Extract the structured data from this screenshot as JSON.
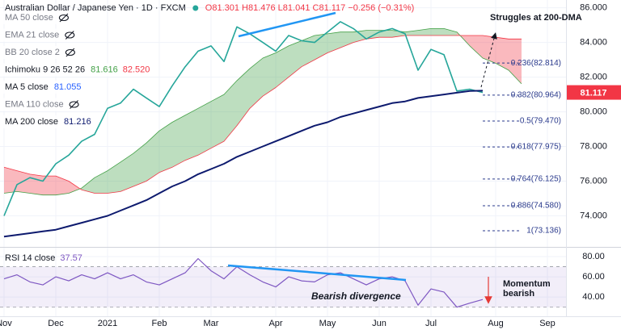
{
  "chart_data": [
    {
      "type": "line",
      "title": "Australian Dollar / Japanese Yen · 1D · FXCM",
      "ohlc_text": "O81.301 H81.476 L81.041 C81.117 −0.256 (−0.31%)",
      "annotation": "Struggles at 200-DMA",
      "categories": [
        "Nov",
        null,
        null,
        null,
        "Dec",
        null,
        null,
        null,
        "2021",
        null,
        null,
        null,
        "Feb",
        null,
        null,
        null,
        "Mar",
        null,
        null,
        null,
        null,
        "Apr",
        null,
        null,
        null,
        "May",
        null,
        null,
        null,
        "Jun",
        null,
        null,
        null,
        "Jul",
        null,
        null,
        null,
        null,
        "Aug",
        null,
        null,
        null,
        "Sep"
      ],
      "values": [
        74.0,
        75.8,
        76.2,
        76.0,
        77.0,
        77.5,
        78.3,
        78.7,
        80.2,
        80.5,
        81.3,
        80.8,
        80.3,
        81.5,
        82.6,
        83.5,
        83.8,
        82.9,
        84.9,
        84.5,
        84.0,
        83.5,
        84.4,
        84.1,
        84.0,
        84.6,
        85.2,
        84.8,
        84.2,
        84.6,
        84.8,
        84.5,
        82.4,
        83.6,
        83.3,
        81.2,
        81.3,
        81.117,
        null,
        null,
        null,
        null,
        null
      ],
      "color": "#26a69a",
      "last_price": 81.117,
      "series": [
        {
          "name": "MA 50 close",
          "hidden": true
        },
        {
          "name": "EMA 21 close",
          "hidden": true
        },
        {
          "name": "BB 20 close 2",
          "hidden": true
        },
        {
          "name": "Ichimoku 9 26 52 26",
          "last": [
            81.616,
            {
              "value": 82.52,
              "label": "82.520"
            }
          ],
          "colors": [
            "#43a047",
            "#f23645"
          ],
          "span_a": [
            75.3,
            75.4,
            75.3,
            75.2,
            75.2,
            75.3,
            75.6,
            76.2,
            76.6,
            77.1,
            77.6,
            78.2,
            78.9,
            79.4,
            79.8,
            80.2,
            80.6,
            81.0,
            81.8,
            82.5,
            83.1,
            83.4,
            83.8,
            84.1,
            84.4,
            84.5,
            84.6,
            84.6,
            84.7,
            84.7,
            84.7,
            84.6,
            84.7,
            84.8,
            84.8,
            84.6,
            83.8,
            83.1,
            82.8,
            82.4,
            81.616,
            null,
            null
          ],
          "span_b": [
            76.8,
            76.6,
            76.4,
            76.3,
            76.3,
            76.0,
            75.5,
            75.3,
            75.3,
            75.4,
            75.7,
            76.0,
            76.5,
            76.8,
            77.2,
            77.5,
            77.9,
            78.3,
            79.2,
            80.2,
            80.9,
            81.4,
            82.0,
            82.6,
            83.0,
            83.4,
            83.7,
            84.0,
            84.2,
            84.3,
            84.3,
            84.4,
            84.4,
            84.4,
            84.4,
            84.4,
            84.4,
            84.4,
            84.3,
            84.2,
            84.2,
            null,
            null
          ]
        },
        {
          "name": "MA 5 close",
          "last": [
            81.055
          ],
          "color": "#2962ff"
        },
        {
          "name": "EMA 110 close",
          "hidden": true
        },
        {
          "name": "MA 200 close",
          "last": [
            81.216
          ],
          "color": "#0d1a6e",
          "values": [
            72.8,
            72.9,
            73.0,
            73.1,
            73.2,
            73.4,
            73.6,
            73.8,
            74.0,
            74.3,
            74.6,
            74.9,
            75.3,
            75.7,
            76.0,
            76.4,
            76.7,
            77.0,
            77.4,
            77.7,
            78.0,
            78.3,
            78.6,
            78.9,
            79.2,
            79.4,
            79.7,
            79.9,
            80.1,
            80.3,
            80.5,
            80.6,
            80.8,
            80.9,
            81.0,
            81.1,
            81.2,
            81.216,
            null,
            null,
            null,
            null,
            null
          ]
        }
      ],
      "fib_levels": [
        {
          "value": 82.814,
          "label": "0.236(82.814)"
        },
        {
          "value": 80.964,
          "label": "0.382(80.964)"
        },
        {
          "value": 79.47,
          "label": "0.5(79.470)"
        },
        {
          "value": 77.975,
          "label": "0.618(77.975)"
        },
        {
          "value": 76.125,
          "label": "0.764(76.125)"
        },
        {
          "value": 74.58,
          "label": "0.886(74.580)"
        },
        {
          "value": 73.136,
          "label": "1(73.136)"
        }
      ],
      "ylim": [
        72.3,
        86.45
      ],
      "yticks": [
        {
          "value": 74,
          "label": "74.000"
        },
        {
          "value": 76,
          "label": "76.000"
        },
        {
          "value": 78,
          "label": "78.000"
        },
        {
          "value": 80,
          "label": "80.000"
        },
        {
          "value": 82,
          "label": "82.000"
        },
        {
          "value": 84,
          "label": "84.000"
        },
        {
          "value": 86,
          "label": "86.000"
        }
      ],
      "grid": true
    },
    {
      "type": "line",
      "title": "RSI 14 close",
      "last": 37.57,
      "color": "#7e57c2",
      "values": [
        58,
        62,
        55,
        52,
        60,
        56,
        62,
        58,
        64,
        58,
        62,
        55,
        52,
        58,
        64,
        78,
        66,
        58,
        70,
        62,
        55,
        50,
        60,
        56,
        55,
        62,
        64,
        58,
        52,
        58,
        60,
        56,
        32,
        48,
        45,
        30,
        34,
        37.57,
        null,
        null,
        null,
        null,
        null
      ],
      "band": [
        30,
        70
      ],
      "annotations": [
        "Bearish divergence",
        "Momentum",
        "bearish"
      ],
      "ylim": [
        21,
        88
      ],
      "yticks": [
        {
          "value": 40,
          "label": "40.00"
        },
        {
          "value": 60,
          "label": "60.00"
        },
        {
          "value": 80,
          "label": "80.00"
        }
      ]
    }
  ]
}
